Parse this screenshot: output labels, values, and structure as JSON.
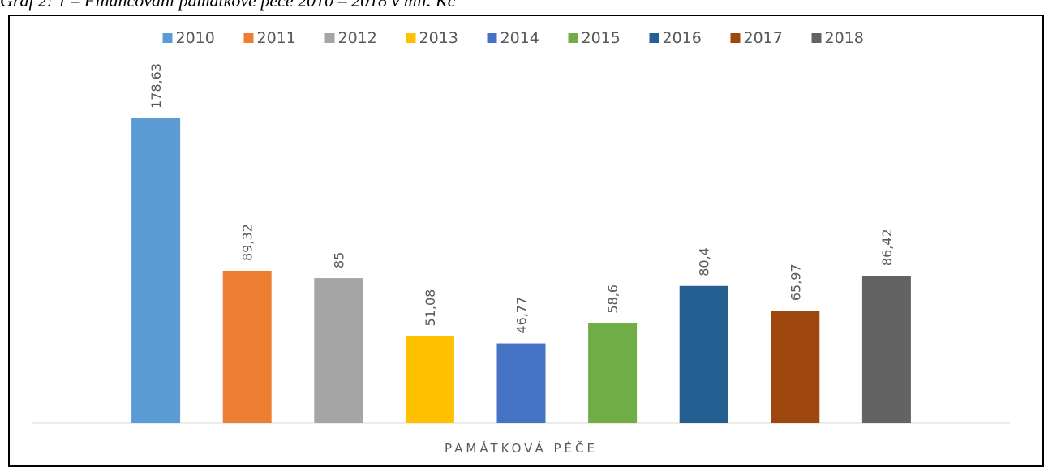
{
  "chart_data": {
    "type": "bar",
    "title": "Graf 2: 1 – Financování památkové péče 2010 – 2018 v mil. Kč",
    "categories": [
      "PAMÁTKOVÁ PÉČE"
    ],
    "series": [
      {
        "name": "2010",
        "color": "#5b9bd5",
        "values": [
          178.63
        ],
        "value_labels": [
          "178,63"
        ]
      },
      {
        "name": "2011",
        "color": "#ed7d31",
        "values": [
          89.32
        ],
        "value_labels": [
          "89,32"
        ]
      },
      {
        "name": "2012",
        "color": "#a5a5a5",
        "values": [
          85
        ],
        "value_labels": [
          "85"
        ]
      },
      {
        "name": "2013",
        "color": "#ffc000",
        "values": [
          51.08
        ],
        "value_labels": [
          "51,08"
        ]
      },
      {
        "name": "2014",
        "color": "#4472c4",
        "values": [
          46.77
        ],
        "value_labels": [
          "46,77"
        ]
      },
      {
        "name": "2015",
        "color": "#70ad47",
        "values": [
          58.6
        ],
        "value_labels": [
          "58,6"
        ]
      },
      {
        "name": "2016",
        "color": "#255e91",
        "values": [
          80.4
        ],
        "value_labels": [
          "80,4"
        ]
      },
      {
        "name": "2017",
        "color": "#9e480e",
        "values": [
          65.97
        ],
        "value_labels": [
          "65,97"
        ]
      },
      {
        "name": "2018",
        "color": "#636363",
        "values": [
          86.42
        ],
        "value_labels": [
          "86,42"
        ]
      }
    ],
    "ylim": [
      0,
      200
    ],
    "legend": "top"
  }
}
